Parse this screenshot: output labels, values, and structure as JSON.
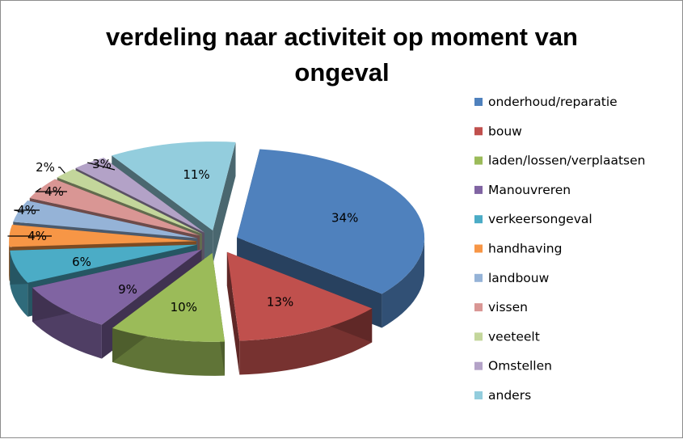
{
  "chart_data": {
    "type": "pie",
    "title_lines": [
      "verdeling naar activiteit op moment van",
      "ongeval"
    ],
    "legend_position": "right",
    "slices": [
      {
        "label": "onderhoud/reparatie",
        "value": 34,
        "display": "34%",
        "color": "#4F81BD"
      },
      {
        "label": "bouw",
        "value": 13,
        "display": "13%",
        "color": "#C0504D"
      },
      {
        "label": "laden/lossen/verplaatsen",
        "value": 10,
        "display": "10%",
        "color": "#9BBB59"
      },
      {
        "label": "Manouvreren",
        "value": 9,
        "display": "9%",
        "color": "#8064A2"
      },
      {
        "label": "verkeersongeval",
        "value": 6,
        "display": "6%",
        "color": "#4BACC6"
      },
      {
        "label": "handhaving",
        "value": 4,
        "display": "4%",
        "color": "#F79646"
      },
      {
        "label": "landbouw",
        "value": 4,
        "display": "4%",
        "color": "#95B3D7"
      },
      {
        "label": "vissen",
        "value": 4,
        "display": "4%",
        "color": "#D99694"
      },
      {
        "label": "veeteelt",
        "value": 2,
        "display": "2%",
        "color": "#C3D69B"
      },
      {
        "label": "Omstellen",
        "value": 3,
        "display": "3%",
        "color": "#B3A2C7"
      },
      {
        "label": "anders",
        "value": 11,
        "display": "11%",
        "color": "#93CDDD"
      }
    ]
  }
}
